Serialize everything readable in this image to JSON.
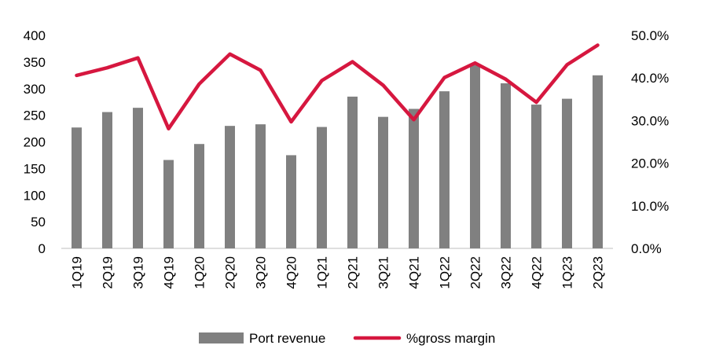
{
  "chart_data": {
    "type": "bar",
    "categories": [
      "1Q19",
      "2Q19",
      "3Q19",
      "4Q19",
      "1Q20",
      "2Q20",
      "3Q20",
      "4Q20",
      "1Q21",
      "2Q21",
      "3Q21",
      "4Q21",
      "1Q22",
      "2Q22",
      "3Q22",
      "4Q22",
      "1Q23",
      "2Q23"
    ],
    "series": [
      {
        "name": "Port revenue",
        "type": "bar",
        "axis": "left",
        "color": "#808080",
        "values": [
          227,
          256,
          264,
          166,
          196,
          230,
          233,
          175,
          228,
          285,
          247,
          262,
          295,
          344,
          310,
          270,
          281,
          325
        ]
      },
      {
        "name": "%gross margin",
        "type": "line",
        "axis": "right",
        "color": "#D6173F",
        "values": [
          40.6,
          42.4,
          44.7,
          28.1,
          38.6,
          45.6,
          41.8,
          29.7,
          39.4,
          43.8,
          38.3,
          30.2,
          40.1,
          43.5,
          39.7,
          34.3,
          43.1,
          47.7
        ]
      }
    ],
    "y_left": {
      "min": 0,
      "max": 400,
      "step": 50,
      "ticks": [
        "0",
        "50",
        "100",
        "150",
        "200",
        "250",
        "300",
        "350",
        "400"
      ]
    },
    "y_right": {
      "min": 0,
      "max": 50,
      "step": 10,
      "ticks": [
        "0.0%",
        "10.0%",
        "20.0%",
        "30.0%",
        "40.0%",
        "50.0%"
      ]
    },
    "grid": false,
    "legend": "bottom"
  }
}
